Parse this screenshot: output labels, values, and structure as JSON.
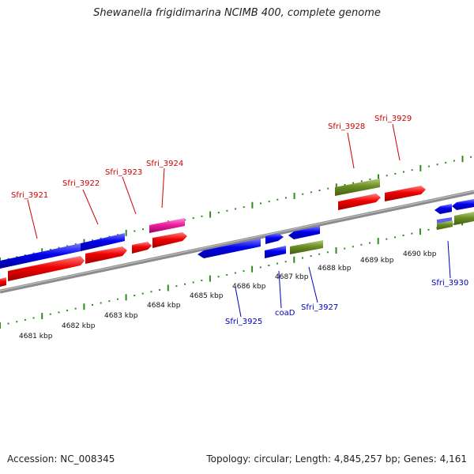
{
  "title": "Shewanella frigidimarina NCIMB 400, complete genome",
  "footer": {
    "accession": "Accession: NC_008345",
    "topology": "Topology: circular; Length: 4,845,257 bp; Genes: 4,161"
  },
  "colors": {
    "tick": "#2e8b1e",
    "backbone": "#8c8c8c",
    "blue_gene": "#0000ee",
    "red_gene": "#ee0000",
    "pink_gene": "#ee1ea0",
    "olive_gene": "#6b8e23",
    "label_top": "#cc0000",
    "label_bottom": "#0000bb"
  },
  "scale_labels": [
    "4681 kbp",
    "4682 kbp",
    "4683 kbp",
    "4684 kbp",
    "4685 kbp",
    "4686 kbp",
    "4687 kbp",
    "4688 kbp",
    "4689 kbp",
    "4690 kbp"
  ],
  "gene_labels_top": [
    "Sfri_3921",
    "Sfri_3922",
    "Sfri_3923",
    "Sfri_3924",
    "Sfri_3928",
    "Sfri_3929"
  ],
  "gene_labels_bottom": [
    "Sfri_3925",
    "coaD",
    "Sfri_3927",
    "Sfri_3930"
  ]
}
